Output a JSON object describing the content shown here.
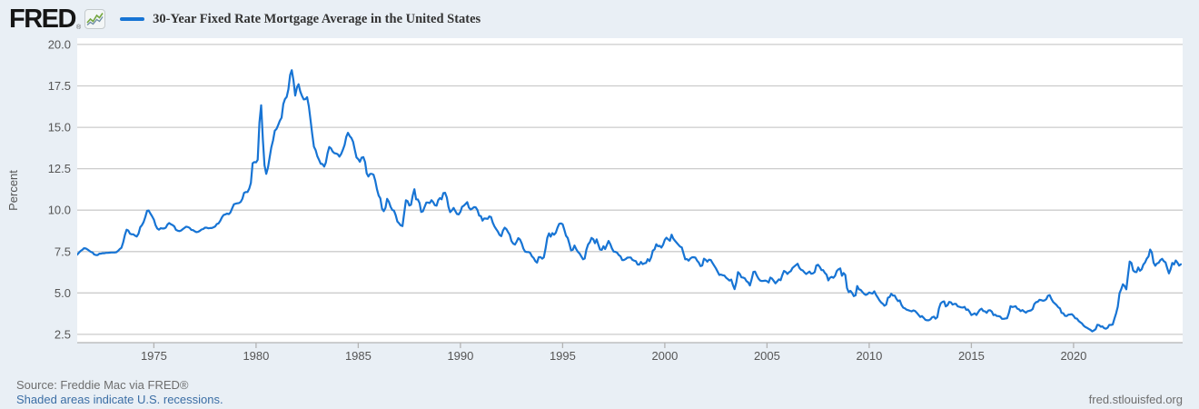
{
  "header": {
    "logo_text": "FRED",
    "registered_mark": "®",
    "legend_label": "30-Year Fixed Rate Mortgage Average in the United States"
  },
  "footer": {
    "source": "Source: Freddie Mac via FRED®",
    "recession_note": "Shaded areas indicate U.S. recessions.",
    "site": "fred.stlouisfed.org"
  },
  "colors": {
    "background": "#e9eff5",
    "plot_background": "#ffffff",
    "gridline": "#cccccc",
    "axis": "#b3b3b3",
    "line": "#1774d4",
    "tick_label": "#555555",
    "title_text": "#333333",
    "footer_text": "#6e6e6e",
    "link": "#3b6ea5"
  },
  "chart_data": {
    "type": "line",
    "title": "30-Year Fixed Rate Mortgage Average in the United States",
    "xlabel": "",
    "ylabel": "Percent",
    "grid": true,
    "legend_position": "top-left",
    "y_ticks": [
      2.5,
      5.0,
      7.5,
      10.0,
      12.5,
      15.0,
      17.5,
      20.0
    ],
    "x_ticks": [
      1975,
      1980,
      1985,
      1990,
      1995,
      2000,
      2005,
      2010,
      2015,
      2020
    ],
    "xlim": [
      1971.25,
      2025.34
    ],
    "ylim": [
      2.0,
      20.38
    ],
    "series": [
      {
        "name": "30-Year Fixed Rate Mortgage Average in the United States",
        "units": "Percent",
        "start_decimal_year": 1971.25,
        "points_per_year": 12,
        "values": [
          7.31,
          7.43,
          7.53,
          7.6,
          7.7,
          7.69,
          7.63,
          7.55,
          7.48,
          7.44,
          7.32,
          7.29,
          7.29,
          7.37,
          7.37,
          7.4,
          7.4,
          7.42,
          7.42,
          7.43,
          7.44,
          7.44,
          7.44,
          7.46,
          7.54,
          7.65,
          7.73,
          8.05,
          8.5,
          8.82,
          8.77,
          8.58,
          8.54,
          8.54,
          8.46,
          8.41,
          8.58,
          8.97,
          9.09,
          9.28,
          9.59,
          9.96,
          9.98,
          9.79,
          9.62,
          9.43,
          9.1,
          8.89,
          8.82,
          8.91,
          8.89,
          8.89,
          8.94,
          9.13,
          9.22,
          9.15,
          9.1,
          9.02,
          8.81,
          8.76,
          8.73,
          8.77,
          8.85,
          8.93,
          9.0,
          8.98,
          8.93,
          8.81,
          8.79,
          8.72,
          8.67,
          8.69,
          8.75,
          8.83,
          8.86,
          8.94,
          8.94,
          8.9,
          8.92,
          8.92,
          8.96,
          9.02,
          9.16,
          9.2,
          9.36,
          9.57,
          9.71,
          9.74,
          9.79,
          9.76,
          9.86,
          10.11,
          10.35,
          10.39,
          10.41,
          10.43,
          10.5,
          10.69,
          11.04,
          11.09,
          11.09,
          11.3,
          11.64,
          12.83,
          12.9,
          12.88,
          13.04,
          15.28,
          16.33,
          14.26,
          12.71,
          12.19,
          12.56,
          13.2,
          13.79,
          14.21,
          14.79,
          14.9,
          15.13,
          15.4,
          15.58,
          16.4,
          16.7,
          16.83,
          17.29,
          18.16,
          18.45,
          17.83,
          16.92,
          17.4,
          17.6,
          17.16,
          16.89,
          16.68,
          16.7,
          16.82,
          16.27,
          15.43,
          14.61,
          13.83,
          13.62,
          13.25,
          13.04,
          12.8,
          12.78,
          12.63,
          12.87,
          13.43,
          13.81,
          13.73,
          13.54,
          13.44,
          13.42,
          13.37,
          13.23,
          13.39,
          13.65,
          13.94,
          14.42,
          14.67,
          14.47,
          14.35,
          14.13,
          13.64,
          13.18,
          13.08,
          12.92,
          13.17,
          13.2,
          12.91,
          12.22,
          12.03,
          12.19,
          12.19,
          12.14,
          11.78,
          11.26,
          10.88,
          10.71,
          10.08,
          9.94,
          10.14,
          10.68,
          10.51,
          10.2,
          10.01,
          9.97,
          9.7,
          9.31,
          9.2,
          9.08,
          9.04,
          9.83,
          10.6,
          10.54,
          10.28,
          10.33,
          10.89,
          11.26,
          10.65,
          10.64,
          10.43,
          9.89,
          9.93,
          10.2,
          10.46,
          10.46,
          10.43,
          10.6,
          10.48,
          10.3,
          10.27,
          10.61,
          10.73,
          10.65,
          11.03,
          11.05,
          10.77,
          10.2,
          9.88,
          9.99,
          10.13,
          9.95,
          9.77,
          9.74,
          9.9,
          10.2,
          10.27,
          10.37,
          10.48,
          10.16,
          10.04,
          10.1,
          10.18,
          10.17,
          10.01,
          9.67,
          9.64,
          9.37,
          9.5,
          9.49,
          9.47,
          9.62,
          9.58,
          9.24,
          9.01,
          8.86,
          8.71,
          8.5,
          8.43,
          8.76,
          8.94,
          8.85,
          8.67,
          8.51,
          8.13,
          7.98,
          7.92,
          8.09,
          8.31,
          8.22,
          7.99,
          7.68,
          7.5,
          7.47,
          7.47,
          7.42,
          7.21,
          7.11,
          6.92,
          6.83,
          7.16,
          7.17,
          7.07,
          7.15,
          7.68,
          8.32,
          8.6,
          8.4,
          8.61,
          8.51,
          8.64,
          8.93,
          9.17,
          9.2,
          9.15,
          8.83,
          8.46,
          8.32,
          7.96,
          7.57,
          7.61,
          7.86,
          7.64,
          7.48,
          7.38,
          7.2,
          7.03,
          7.08,
          7.62,
          7.93,
          8.07,
          8.32,
          8.25,
          8.0,
          8.23,
          7.92,
          7.62,
          7.6,
          7.82,
          7.65,
          7.9,
          8.14,
          7.94,
          7.69,
          7.5,
          7.48,
          7.43,
          7.29,
          7.21,
          6.99,
          6.99,
          7.04,
          7.13,
          7.14,
          7.14,
          7.0,
          6.95,
          6.92,
          6.72,
          6.71,
          6.87,
          6.74,
          6.79,
          6.81,
          7.04,
          6.92,
          7.15,
          7.55,
          7.63,
          7.94,
          7.82,
          7.85,
          7.74,
          7.91,
          8.21,
          8.33,
          8.24,
          8.15,
          8.52,
          8.29,
          8.15,
          8.03,
          7.91,
          7.8,
          7.75,
          7.38,
          7.03,
          7.05,
          6.95,
          7.08,
          7.15,
          7.16,
          7.13,
          6.95,
          6.82,
          6.62,
          6.66,
          7.07,
          7.0,
          6.89,
          7.01,
          6.99,
          6.81,
          6.65,
          6.49,
          6.29,
          6.09,
          6.11,
          6.07,
          6.05,
          5.92,
          5.84,
          5.75,
          5.81,
          5.48,
          5.23,
          5.63,
          6.26,
          6.15,
          5.95,
          5.93,
          5.88,
          5.71,
          5.64,
          5.45,
          5.83,
          6.27,
          6.29,
          6.06,
          5.87,
          5.75,
          5.72,
          5.73,
          5.75,
          5.71,
          5.63,
          5.93,
          5.86,
          5.72,
          5.58,
          5.7,
          5.82,
          5.77,
          6.07,
          6.33,
          6.27,
          6.15,
          6.25,
          6.32,
          6.51,
          6.6,
          6.68,
          6.76,
          6.52,
          6.4,
          6.36,
          6.24,
          6.14,
          6.22,
          6.29,
          6.16,
          6.18,
          6.26,
          6.66,
          6.7,
          6.57,
          6.38,
          6.38,
          6.21,
          6.1,
          5.76,
          5.92,
          5.97,
          5.92,
          6.04,
          6.32,
          6.43,
          6.48,
          6.04,
          6.2,
          6.09,
          5.29,
          5.05,
          5.13,
          5.0,
          4.81,
          4.86,
          5.42,
          5.22,
          5.19,
          5.06,
          4.95,
          4.88,
          4.93,
          5.03,
          4.99,
          4.97,
          5.1,
          4.89,
          4.74,
          4.56,
          4.43,
          4.35,
          4.23,
          4.3,
          4.71,
          4.76,
          4.95,
          4.84,
          4.84,
          4.64,
          4.51,
          4.55,
          4.27,
          4.11,
          4.07,
          3.99,
          3.96,
          3.92,
          3.89,
          3.95,
          3.91,
          3.8,
          3.68,
          3.55,
          3.6,
          3.5,
          3.38,
          3.35,
          3.35,
          3.41,
          3.53,
          3.57,
          3.45,
          3.54,
          4.07,
          4.37,
          4.46,
          4.49,
          4.19,
          4.26,
          4.46,
          4.43,
          4.3,
          4.34,
          4.34,
          4.19,
          4.16,
          4.13,
          4.12,
          4.16,
          3.98,
          4.0,
          3.86,
          3.67,
          3.71,
          3.77,
          3.67,
          3.84,
          3.98,
          4.05,
          3.91,
          3.89,
          3.8,
          3.94,
          3.96,
          3.87,
          3.66,
          3.69,
          3.61,
          3.6,
          3.57,
          3.44,
          3.44,
          3.46,
          3.47,
          3.77,
          4.2,
          4.15,
          4.17,
          4.2,
          4.05,
          4.01,
          3.9,
          3.97,
          3.88,
          3.81,
          3.9,
          3.92,
          3.95,
          4.03,
          4.33,
          4.44,
          4.47,
          4.59,
          4.57,
          4.53,
          4.55,
          4.63,
          4.83,
          4.87,
          4.64,
          4.46,
          4.37,
          4.27,
          4.14,
          4.07,
          3.8,
          3.77,
          3.62,
          3.61,
          3.69,
          3.7,
          3.72,
          3.62,
          3.47,
          3.45,
          3.31,
          3.23,
          3.16,
          3.02,
          2.94,
          2.89,
          2.83,
          2.77,
          2.68,
          2.74,
          2.81,
          3.08,
          3.06,
          2.96,
          2.98,
          2.87,
          2.84,
          2.9,
          3.07,
          3.07,
          3.1,
          3.45,
          3.76,
          4.17,
          4.98,
          5.23,
          5.52,
          5.41,
          5.22,
          6.11,
          6.9,
          6.81,
          6.36,
          6.27,
          6.26,
          6.54,
          6.34,
          6.43,
          6.71,
          6.84,
          7.07,
          7.2,
          7.62,
          7.44,
          6.82,
          6.64,
          6.78,
          6.82,
          6.99,
          7.06,
          6.92,
          6.85,
          6.5,
          6.18,
          6.43,
          6.81,
          6.72,
          6.96,
          6.84,
          6.65,
          6.73
        ]
      }
    ]
  }
}
